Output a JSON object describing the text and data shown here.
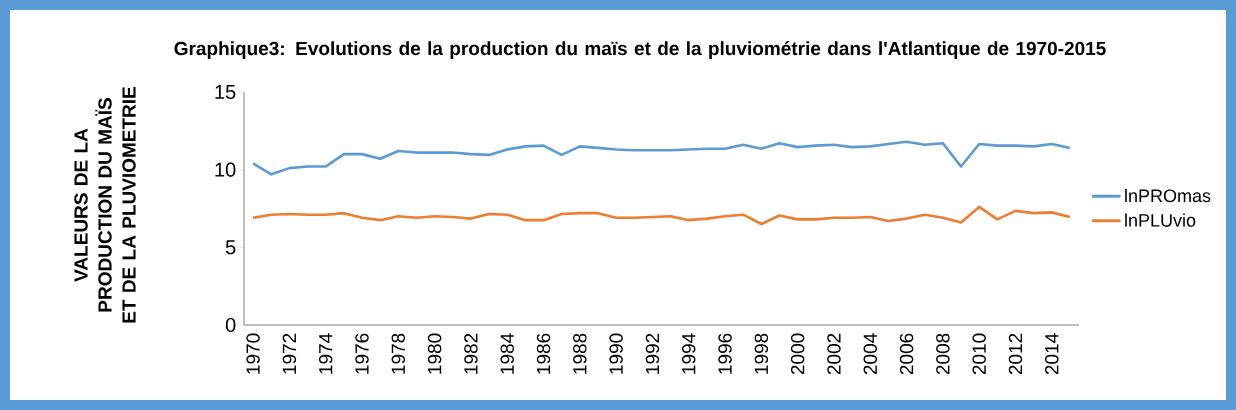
{
  "chart_data": {
    "type": "line",
    "title": "Graphique3: Evolutions de la production du maïs et de la pluviométrie dans l'Atlantique de 1970-2015",
    "ylabel": "VALEURS DE LA PRODUCTION DU MAÏS ET DE LA PLUVIOMETRIE",
    "categories": [
      "1970",
      null,
      "1972",
      null,
      "1974",
      null,
      "1976",
      null,
      "1978",
      null,
      "1980",
      null,
      "1982",
      null,
      "1984",
      null,
      "1986",
      null,
      "1988",
      null,
      "1990",
      null,
      "1992",
      null,
      "1994",
      null,
      "1996",
      null,
      "1998",
      null,
      "2000",
      null,
      "2002",
      null,
      "2004",
      null,
      "2006",
      null,
      "2008",
      null,
      "2010",
      null,
      "2012",
      null,
      "2014",
      null
    ],
    "series": [
      {
        "name": "lnPROmas",
        "color": "#5b9bd5",
        "values": [
          10.4,
          9.7,
          10.1,
          10.2,
          10.2,
          11.0,
          11.0,
          10.7,
          11.2,
          11.1,
          11.1,
          11.1,
          11.0,
          10.95,
          11.3,
          11.5,
          11.55,
          10.95,
          11.5,
          11.4,
          11.3,
          11.25,
          11.25,
          11.25,
          11.3,
          11.35,
          11.35,
          11.6,
          11.35,
          11.7,
          11.45,
          11.55,
          11.6,
          11.45,
          11.5,
          11.65,
          11.8,
          11.6,
          11.7,
          10.2,
          11.65,
          11.55,
          11.55,
          11.5,
          11.65,
          11.4
        ]
      },
      {
        "name": "lnPLUvio",
        "color": "#ed7d31",
        "values": [
          6.9,
          7.1,
          7.15,
          7.1,
          7.1,
          7.2,
          6.9,
          6.75,
          7.0,
          6.9,
          7.0,
          6.95,
          6.85,
          7.15,
          7.1,
          6.75,
          6.75,
          7.15,
          7.2,
          7.2,
          6.9,
          6.9,
          6.95,
          7.0,
          6.75,
          6.85,
          7.0,
          7.1,
          6.5,
          7.05,
          6.8,
          6.8,
          6.9,
          6.9,
          6.95,
          6.7,
          6.85,
          7.1,
          6.9,
          6.6,
          7.6,
          6.8,
          7.35,
          7.2,
          7.25,
          6.95
        ]
      }
    ],
    "ylim": [
      0,
      15
    ],
    "yticks": [
      0,
      5,
      10,
      15
    ],
    "legend": "right",
    "grid": false,
    "marker": "none",
    "line_style": "solid"
  }
}
